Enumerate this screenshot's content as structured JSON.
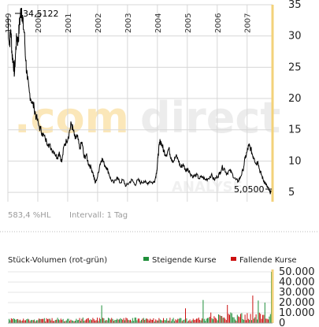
{
  "watermark": {
    "brand_dot": ".com",
    "brand_rest": "direct",
    "sub": "ANALYSE"
  },
  "chart_data": [
    {
      "type": "line",
      "x_tick_labels": [
        "1999",
        "2000",
        "2001",
        "2002",
        "2003",
        "2004",
        "2005",
        "2006",
        "2007"
      ],
      "y_tick_labels": [
        "5",
        "10",
        "15",
        "20",
        "25",
        "30",
        "35"
      ],
      "ylim": [
        3.5,
        35
      ],
      "grid": true,
      "annotations": {
        "high": "34,5122",
        "last": "5,0500"
      },
      "footer": {
        "hl_text": "583,4 %HL",
        "interval": "Intervall: 1 Tag"
      },
      "series": [
        {
          "x": [
            1999.0,
            1999.05,
            1999.1,
            1999.14,
            1999.18,
            1999.22,
            1999.26,
            1999.3,
            1999.34,
            1999.38,
            1999.42,
            1999.46,
            1999.5,
            1999.55,
            1999.6,
            1999.65,
            1999.72,
            1999.8,
            1999.88,
            1999.95,
            2000.05,
            2000.15,
            2000.25,
            2000.35,
            2000.45,
            2000.55,
            2000.65,
            2000.72,
            2000.8,
            2000.88,
            2000.96,
            2001.05,
            2001.12,
            2001.18,
            2001.25,
            2001.32,
            2001.4,
            2001.48,
            2001.55,
            2001.62,
            2001.7,
            2001.78,
            2001.85,
            2001.92,
            2002.0,
            2002.08,
            2002.15,
            2002.22,
            2002.3,
            2002.38,
            2002.45,
            2002.55,
            2002.65,
            2002.75,
            2002.85,
            2002.95,
            2003.05,
            2003.15,
            2003.25,
            2003.35,
            2003.45,
            2003.55,
            2003.65,
            2003.75,
            2003.85,
            2003.92,
            2003.98,
            2004.02,
            2004.06,
            2004.1,
            2004.16,
            2004.22,
            2004.3,
            2004.38,
            2004.46,
            2004.54,
            2004.62,
            2004.7,
            2004.78,
            2004.86,
            2004.94,
            2005.02,
            2005.1,
            2005.2,
            2005.3,
            2005.4,
            2005.5,
            2005.6,
            2005.7,
            2005.8,
            2005.9,
            2006.0,
            2006.08,
            2006.16,
            2006.24,
            2006.32,
            2006.42,
            2006.52,
            2006.62,
            2006.7,
            2006.78,
            2006.86,
            2006.94,
            2007.0,
            2007.06,
            2007.12,
            2007.18,
            2007.24,
            2007.3,
            2007.36,
            2007.42,
            2007.48,
            2007.54,
            2007.6,
            2007.66,
            2007.72,
            2007.76,
            2007.8
          ],
          "values": [
            33.0,
            28.5,
            31.0,
            27.0,
            26.0,
            24.0,
            27.5,
            30.0,
            29.0,
            31.5,
            33.5,
            34.5,
            32.0,
            30.5,
            26.0,
            23.0,
            21.0,
            19.5,
            18.5,
            17.0,
            15.5,
            14.5,
            13.5,
            12.8,
            12.0,
            11.5,
            10.5,
            11.5,
            9.8,
            12.5,
            13.2,
            14.5,
            16.0,
            15.0,
            13.5,
            14.0,
            12.0,
            13.0,
            10.5,
            11.0,
            9.5,
            9.0,
            8.0,
            6.5,
            7.5,
            9.5,
            10.5,
            9.5,
            9.0,
            8.0,
            7.0,
            6.5,
            7.5,
            6.5,
            7.0,
            6.0,
            6.5,
            7.0,
            6.2,
            7.0,
            6.5,
            6.8,
            6.4,
            6.8,
            6.5,
            7.0,
            8.5,
            10.5,
            12.5,
            13.3,
            12.5,
            11.5,
            11.0,
            12.0,
            10.5,
            10.0,
            10.8,
            10.2,
            9.0,
            9.5,
            8.5,
            8.8,
            8.0,
            7.5,
            7.8,
            7.2,
            7.5,
            7.0,
            7.2,
            7.8,
            7.0,
            7.5,
            8.0,
            9.0,
            8.8,
            8.0,
            8.5,
            7.8,
            7.0,
            6.8,
            7.5,
            8.5,
            10.5,
            11.5,
            12.5,
            12.0,
            11.0,
            10.5,
            9.5,
            10.0,
            8.5,
            7.8,
            7.0,
            6.5,
            6.0,
            5.5,
            5.0,
            5.05
          ]
        }
      ]
    },
    {
      "type": "bar",
      "title": "Stück-Volumen (rot-grün)",
      "legend": [
        {
          "name": "Steigende Kurse",
          "color": "#1f8f3a"
        },
        {
          "name": "Fallende Kurse",
          "color": "#cc1111"
        }
      ],
      "y_tick_labels": [
        "0",
        "10.000",
        "20.000",
        "30.000",
        "40.000",
        "50.000"
      ],
      "ylim": [
        0,
        50000
      ]
    }
  ],
  "colors": {
    "line": "#000000",
    "grid": "#d7d7d7",
    "axis": "#c9c9c9",
    "watermark": "#fbe7b9",
    "watermark2": "#efefef",
    "marker": "#f3d27a",
    "up": "#1f8f3a",
    "down": "#cc1111",
    "footer_text": "#9a9a9a"
  }
}
